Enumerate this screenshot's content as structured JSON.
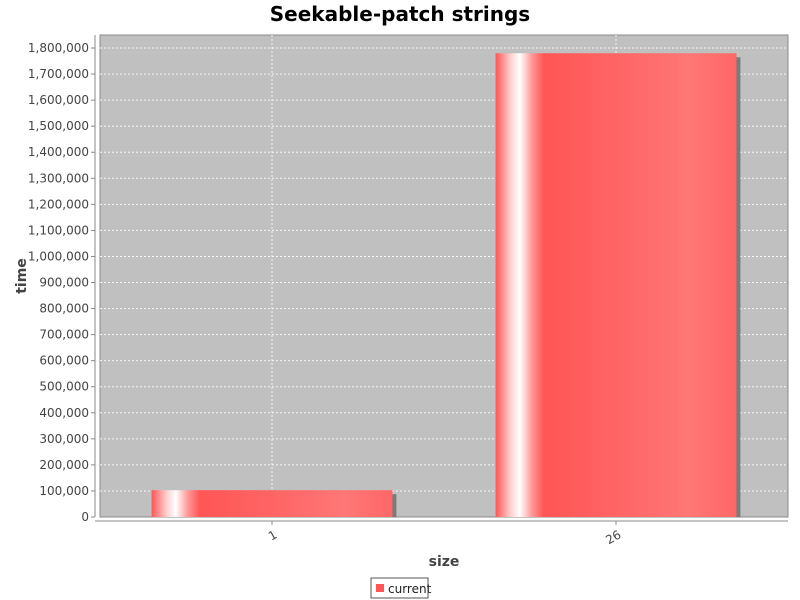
{
  "chart_data": {
    "type": "bar",
    "title": "Seekable-patch strings",
    "xlabel": "size",
    "ylabel": "time",
    "categories": [
      "1",
      "26"
    ],
    "series": [
      {
        "name": "current",
        "values": [
          103000,
          1780000
        ],
        "color": "#ff5555"
      }
    ],
    "ylim": [
      0,
      1850000
    ],
    "yticks": [
      0,
      100000,
      200000,
      300000,
      400000,
      500000,
      600000,
      700000,
      800000,
      900000,
      1000000,
      1100000,
      1200000,
      1300000,
      1400000,
      1500000,
      1600000,
      1700000,
      1800000
    ],
    "grid": true,
    "legend": "bottom-center",
    "plot_background": "#c0c0c0"
  }
}
